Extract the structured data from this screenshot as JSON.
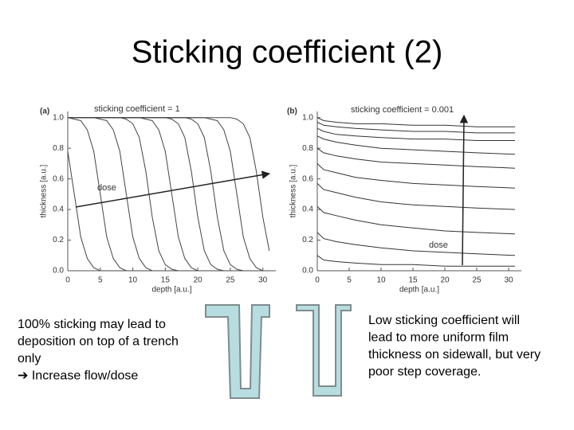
{
  "title": "Sticking coefficient (2)",
  "chart_data": [
    {
      "type": "line",
      "panel": "(a)",
      "annotation": "sticking coefficient = 1",
      "arrow_label": "dose",
      "x_label": "depth [a.u.]",
      "y_label": "thickness [a.u.]",
      "color": "#444444",
      "xlim": [
        0,
        32
      ],
      "ylim": [
        0,
        1.04
      ],
      "xticks": [
        0,
        5,
        10,
        15,
        20,
        25,
        30
      ],
      "yticks": [
        {
          "value": 0,
          "label": "0.0"
        },
        {
          "value": 0.2,
          "label": "0.2"
        },
        {
          "value": 0.4,
          "label": "0.4"
        },
        {
          "value": 0.6,
          "label": "0.6"
        },
        {
          "value": 0.8,
          "label": "0.8"
        },
        {
          "value": 1,
          "label": "1.0"
        }
      ],
      "x": [
        0,
        1,
        2,
        3,
        4,
        5,
        6,
        7,
        8,
        9,
        10,
        11,
        12,
        13,
        14,
        15,
        16,
        17,
        18,
        19,
        20,
        21,
        22,
        23,
        24,
        25,
        26,
        27,
        28,
        29,
        30,
        31
      ],
      "series": [
        {
          "values": [
            0.78,
            0.5,
            0.22,
            0.08,
            0.02,
            0,
            0,
            0,
            0,
            0,
            0,
            0,
            0,
            0,
            0,
            0,
            0,
            0,
            0,
            0,
            0,
            0,
            0,
            0,
            0,
            0,
            0,
            0,
            0,
            0,
            0,
            0
          ]
        },
        {
          "values": [
            1,
            0.99,
            0.98,
            0.92,
            0.78,
            0.5,
            0.22,
            0.08,
            0.02,
            0,
            0,
            0,
            0,
            0,
            0,
            0,
            0,
            0,
            0,
            0,
            0,
            0,
            0,
            0,
            0,
            0,
            0,
            0,
            0,
            0,
            0,
            0
          ]
        },
        {
          "values": [
            1,
            1,
            1,
            1,
            1,
            0.99,
            0.98,
            0.92,
            0.78,
            0.5,
            0.22,
            0.08,
            0.02,
            0,
            0,
            0,
            0,
            0,
            0,
            0,
            0,
            0,
            0,
            0,
            0,
            0,
            0,
            0,
            0,
            0,
            0,
            0
          ]
        },
        {
          "values": [
            1,
            1,
            1,
            1,
            1,
            1,
            1,
            1,
            1,
            0.99,
            0.96,
            0.87,
            0.65,
            0.35,
            0.13,
            0.04,
            0.01,
            0,
            0,
            0,
            0,
            0,
            0,
            0,
            0,
            0,
            0,
            0,
            0,
            0,
            0,
            0
          ]
        },
        {
          "values": [
            1,
            1,
            1,
            1,
            1,
            1,
            1,
            1,
            1,
            1,
            1,
            1,
            0.99,
            0.98,
            0.92,
            0.78,
            0.5,
            0.22,
            0.08,
            0.02,
            0,
            0,
            0,
            0,
            0,
            0,
            0,
            0,
            0,
            0,
            0,
            0
          ]
        },
        {
          "values": [
            1,
            1,
            1,
            1,
            1,
            1,
            1,
            1,
            1,
            1,
            1,
            1,
            1,
            1,
            1,
            1,
            0.99,
            0.96,
            0.87,
            0.65,
            0.35,
            0.13,
            0.04,
            0.01,
            0,
            0,
            0,
            0,
            0,
            0,
            0,
            0
          ]
        },
        {
          "values": [
            1,
            1,
            1,
            1,
            1,
            1,
            1,
            1,
            1,
            1,
            1,
            1,
            1,
            1,
            1,
            1,
            1,
            1,
            1,
            0.99,
            0.96,
            0.87,
            0.65,
            0.35,
            0.13,
            0.04,
            0.01,
            0,
            0,
            0,
            0,
            0
          ]
        },
        {
          "values": [
            1,
            1,
            1,
            1,
            1,
            1,
            1,
            1,
            1,
            1,
            1,
            1,
            1,
            1,
            1,
            1,
            1,
            1,
            1,
            1,
            1,
            1,
            0.99,
            0.98,
            0.92,
            0.78,
            0.5,
            0.22,
            0.08,
            0.02,
            0,
            0
          ]
        },
        {
          "values": [
            1,
            1,
            1,
            1,
            1,
            1,
            1,
            1,
            1,
            1,
            1,
            1,
            1,
            1,
            1,
            1,
            1,
            1,
            1,
            1,
            1,
            1,
            1,
            1,
            1,
            1,
            0.99,
            0.96,
            0.87,
            0.65,
            0.35,
            0.13
          ]
        }
      ]
    },
    {
      "type": "line",
      "panel": "(b)",
      "annotation": "sticking coefficient = 0.001",
      "arrow_label": "dose",
      "x_label": "depth [a.u.]",
      "y_label": "thickness [a.u.]",
      "color": "#333333",
      "xlim": [
        0,
        32
      ],
      "ylim": [
        0,
        1.04
      ],
      "xticks": [
        0,
        5,
        10,
        15,
        20,
        25,
        30
      ],
      "yticks": [
        {
          "value": 0,
          "label": "0.0"
        },
        {
          "value": 0.2,
          "label": "0.2"
        },
        {
          "value": 0.4,
          "label": "0.4"
        },
        {
          "value": 0.6,
          "label": "0.6"
        },
        {
          "value": 0.8,
          "label": "0.8"
        },
        {
          "value": 1,
          "label": "1.0"
        }
      ],
      "x": [
        0,
        1,
        3,
        6,
        10,
        15,
        20,
        25,
        31
      ],
      "series": [
        {
          "values": [
            1,
            0.98,
            0.97,
            0.96,
            0.96,
            0.95,
            0.95,
            0.94,
            0.94
          ]
        },
        {
          "values": [
            0.97,
            0.95,
            0.94,
            0.93,
            0.92,
            0.91,
            0.91,
            0.9,
            0.9
          ]
        },
        {
          "values": [
            0.93,
            0.91,
            0.89,
            0.88,
            0.87,
            0.86,
            0.86,
            0.85,
            0.85
          ]
        },
        {
          "values": [
            0.88,
            0.86,
            0.84,
            0.82,
            0.8,
            0.79,
            0.78,
            0.77,
            0.76
          ]
        },
        {
          "values": [
            0.8,
            0.77,
            0.75,
            0.73,
            0.71,
            0.7,
            0.69,
            0.68,
            0.67
          ]
        },
        {
          "values": [
            0.7,
            0.66,
            0.64,
            0.61,
            0.59,
            0.57,
            0.56,
            0.55,
            0.54
          ]
        },
        {
          "values": [
            0.57,
            0.53,
            0.51,
            0.48,
            0.45,
            0.43,
            0.42,
            0.41,
            0.4
          ]
        },
        {
          "values": [
            0.42,
            0.38,
            0.36,
            0.33,
            0.3,
            0.28,
            0.26,
            0.25,
            0.24
          ]
        },
        {
          "values": [
            0.25,
            0.21,
            0.19,
            0.17,
            0.15,
            0.13,
            0.12,
            0.11,
            0.1
          ]
        },
        {
          "values": [
            0.1,
            0.07,
            0.06,
            0.05,
            0.04,
            0.04,
            0.03,
            0.03,
            0.03
          ]
        }
      ]
    }
  ],
  "notes": {
    "left": [
      "100% sticking may lead to",
      "deposition on top of a trench",
      "only",
      "➔ Increase flow/dose"
    ],
    "right": [
      "Low sticking coefficient will",
      "lead to more uniform film",
      "thickness on sidewall, but very",
      "poor step coverage."
    ]
  }
}
